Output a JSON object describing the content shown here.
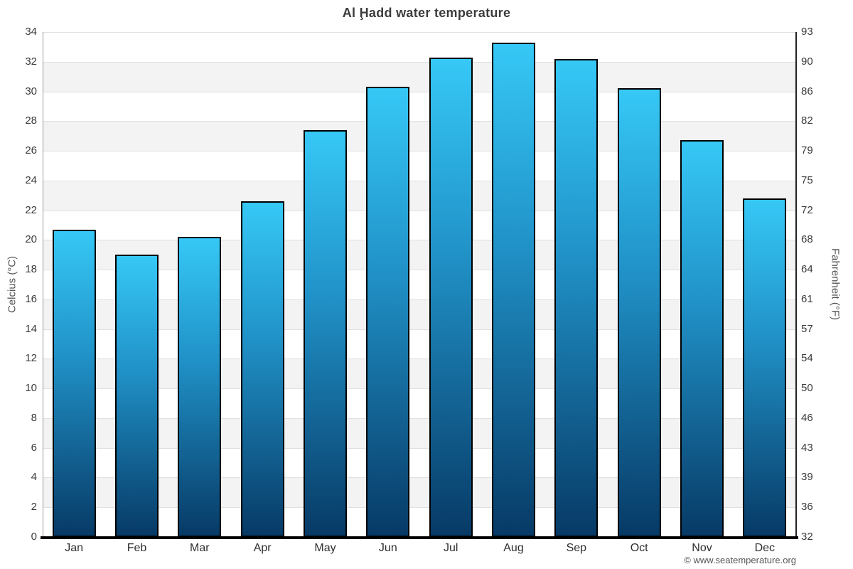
{
  "title": "Al Ḩadd water temperature",
  "footer": "© www.seatemperature.org",
  "chart_data": {
    "type": "bar",
    "title": "Al Ḩadd water temperature",
    "categories": [
      "Jan",
      "Feb",
      "Mar",
      "Apr",
      "May",
      "Jun",
      "Jul",
      "Aug",
      "Sep",
      "Oct",
      "Nov",
      "Dec"
    ],
    "values": [
      20.7,
      19.0,
      20.2,
      22.6,
      27.4,
      30.3,
      32.3,
      33.3,
      32.2,
      30.2,
      26.7,
      22.8
    ],
    "unit": "°C",
    "ylabel_left": "Celcius (°C)",
    "ylabel_right": "Fahrenheit (°F)",
    "ylim": [
      0,
      34
    ],
    "ytick_step": 2,
    "left_axis_ticks": [
      0,
      2,
      4,
      6,
      8,
      10,
      12,
      14,
      16,
      18,
      20,
      22,
      24,
      26,
      28,
      30,
      32,
      34
    ],
    "right_axis_ticks": [
      32,
      36,
      39,
      43,
      46,
      50,
      54,
      57,
      61,
      64,
      68,
      72,
      75,
      79,
      82,
      86,
      90,
      93
    ],
    "legend": "none",
    "grid": "horizontal gridlines every 2°C with alternating band shading",
    "colors": {
      "bar_top": "#36c8f6",
      "bar_mid": "#2193c9",
      "bar_bottom": "#073a66",
      "bar_border": "#000000",
      "band_shade": "#f3f3f3",
      "band_plain": "#ffffff",
      "gridline": "#e0e0e0",
      "left_axis_line": "#999999",
      "right_axis_line": "#222222",
      "x_axis_line": "#000000",
      "title_text": "#3c3c3c",
      "tick_text": "#3a3a3a",
      "axis_label_text": "#555555",
      "footer_text": "#555555"
    }
  }
}
